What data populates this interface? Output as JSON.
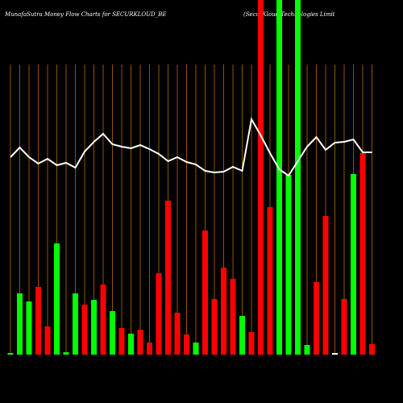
{
  "chart_data": {
    "type": "bar",
    "title": "MunafaSutra  Money Flow  Charts for SECURKLOUD_BE",
    "subtitle": "(SecurKloud Technologies Limit",
    "categories": [
      null,
      null,
      null,
      null,
      null,
      null,
      null,
      null,
      null,
      null,
      null,
      null,
      null,
      null,
      null,
      null,
      null,
      null,
      null,
      null,
      null,
      null,
      null,
      null,
      null,
      null,
      null,
      null,
      null,
      null,
      null,
      null,
      null,
      null,
      null,
      null,
      null,
      null,
      null,
      null
    ],
    "values": [
      2,
      76,
      66,
      84,
      35,
      138,
      3,
      76,
      62,
      68,
      87,
      54,
      33,
      26,
      31,
      15,
      101,
      191,
      52,
      25,
      15,
      154,
      69,
      108,
      94,
      48,
      28,
      460,
      183,
      460,
      223,
      460,
      12,
      90,
      172,
      2,
      69,
      224,
      250,
      13
    ],
    "colors": [
      "#00ff00",
      "#00ff00",
      "#00ff00",
      "#ff0000",
      "#ff0000",
      "#00ff00",
      "#00ff00",
      "#00ff00",
      "#ff0000",
      "#00ff00",
      "#ff0000",
      "#00ff00",
      "#ff0000",
      "#00ff00",
      "#ff0000",
      "#ff0000",
      "#ff0000",
      "#ff0000",
      "#ff0000",
      "#ff0000",
      "#00ff00",
      "#ff0000",
      "#ff0000",
      "#ff0000",
      "#ff0000",
      "#00ff00",
      "#ff0000",
      "#ff0000",
      "#ff0000",
      "#00ff00",
      "#00ff00",
      "#00ff00",
      "#00ff00",
      "#ff0000",
      "#ff0000",
      "#ffffff",
      "#ff0000",
      "#00ff00",
      "#ff0000",
      "#ff0000"
    ],
    "line": {
      "color": "#ffffff",
      "values": [
        245,
        257,
        245,
        237,
        243,
        235,
        238,
        232,
        252,
        264,
        274,
        261,
        258,
        256,
        260,
        255,
        249,
        240,
        245,
        239,
        236,
        228,
        226,
        227,
        233,
        228,
        292,
        272,
        250,
        230,
        222,
        240,
        258,
        270,
        254,
        263,
        264,
        267,
        251,
        251
      ]
    },
    "ylim": [
      0,
      440
    ],
    "grid_color": "#b86a00"
  }
}
